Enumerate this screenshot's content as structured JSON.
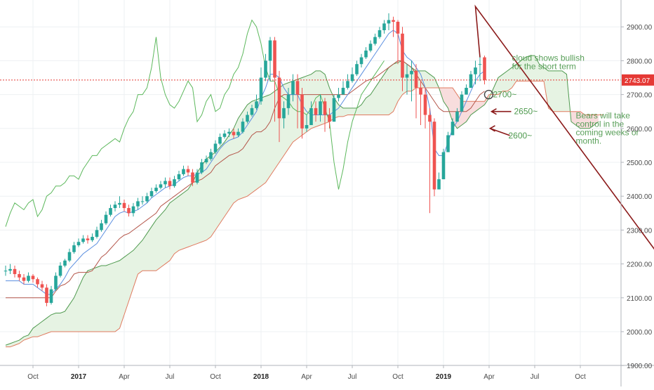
{
  "chart_data": {
    "type": "candlestick",
    "title": "",
    "xlabel": "",
    "ylabel": "",
    "ylim": [
      1890,
      3000
    ],
    "price_label": "2743.07",
    "x_ticks": [
      {
        "label": "Oct",
        "idx": 6,
        "bold": false
      },
      {
        "label": "2017",
        "idx": 16,
        "bold": true
      },
      {
        "label": "Apr",
        "idx": 26,
        "bold": false
      },
      {
        "label": "Jul",
        "idx": 36,
        "bold": false
      },
      {
        "label": "Oct",
        "idx": 46,
        "bold": false
      },
      {
        "label": "2018",
        "idx": 56,
        "bold": true
      },
      {
        "label": "Apr",
        "idx": 66,
        "bold": false
      },
      {
        "label": "Jul",
        "idx": 76,
        "bold": false
      },
      {
        "label": "Oct",
        "idx": 86,
        "bold": false
      },
      {
        "label": "2019",
        "idx": 96,
        "bold": true
      },
      {
        "label": "Apr",
        "idx": 106,
        "bold": false
      },
      {
        "label": "Jul",
        "idx": 116,
        "bold": false
      },
      {
        "label": "Oct",
        "idx": 126,
        "bold": false
      }
    ],
    "y_ticks": [
      1900,
      2000,
      2100,
      2200,
      2300,
      2400,
      2500,
      2600,
      2700,
      2800,
      2900
    ],
    "y_tick_labels": [
      "1900.00",
      "2000.00",
      "2100.00",
      "2200.00",
      "2300.00",
      "2400.00",
      "2500.00",
      "2600.00",
      "2700.00",
      "2800.00",
      "2900.00"
    ],
    "closes": [
      2180,
      2185,
      2170,
      2160,
      2150,
      2165,
      2155,
      2140,
      2130,
      2085,
      2125,
      2165,
      2195,
      2210,
      2235,
      2255,
      2265,
      2275,
      2270,
      2280,
      2300,
      2320,
      2345,
      2365,
      2375,
      2380,
      2365,
      2350,
      2370,
      2385,
      2385,
      2400,
      2415,
      2425,
      2435,
      2445,
      2430,
      2450,
      2465,
      2480,
      2470,
      2440,
      2470,
      2500,
      2510,
      2530,
      2555,
      2575,
      2585,
      2590,
      2580,
      2590,
      2620,
      2640,
      2660,
      2680,
      2750,
      2800,
      2860,
      2750,
      2630,
      2660,
      2700,
      2740,
      2700,
      2600,
      2610,
      2660,
      2640,
      2680,
      2640,
      2620,
      2690,
      2700,
      2720,
      2740,
      2760,
      2790,
      2810,
      2830,
      2850,
      2870,
      2890,
      2910,
      2920,
      2915,
      2880,
      2750,
      2760,
      2770,
      2720,
      2700,
      2640,
      2620,
      2420,
      2450,
      2530,
      2580,
      2620,
      2650,
      2700,
      2720,
      2760,
      2780,
      2790,
      2743
    ],
    "opens": [
      2180,
      2180,
      2185,
      2170,
      2160,
      2150,
      2165,
      2155,
      2140,
      2130,
      2085,
      2125,
      2165,
      2195,
      2210,
      2235,
      2255,
      2265,
      2275,
      2270,
      2280,
      2300,
      2320,
      2345,
      2365,
      2375,
      2380,
      2365,
      2350,
      2370,
      2385,
      2385,
      2400,
      2415,
      2425,
      2435,
      2445,
      2430,
      2450,
      2465,
      2480,
      2470,
      2440,
      2470,
      2500,
      2510,
      2530,
      2555,
      2575,
      2585,
      2590,
      2580,
      2590,
      2620,
      2640,
      2660,
      2680,
      2750,
      2800,
      2860,
      2750,
      2630,
      2660,
      2700,
      2740,
      2700,
      2600,
      2610,
      2660,
      2640,
      2680,
      2640,
      2620,
      2690,
      2700,
      2720,
      2740,
      2760,
      2790,
      2810,
      2830,
      2850,
      2870,
      2890,
      2910,
      2920,
      2915,
      2880,
      2750,
      2760,
      2770,
      2720,
      2700,
      2640,
      2620,
      2420,
      2450,
      2530,
      2580,
      2620,
      2650,
      2700,
      2720,
      2760,
      2790,
      2810
    ],
    "highs": [
      2195,
      2200,
      2195,
      2180,
      2170,
      2175,
      2170,
      2160,
      2150,
      2140,
      2135,
      2175,
      2205,
      2215,
      2245,
      2265,
      2275,
      2285,
      2285,
      2290,
      2310,
      2330,
      2355,
      2375,
      2385,
      2400,
      2390,
      2375,
      2380,
      2395,
      2400,
      2410,
      2425,
      2435,
      2445,
      2455,
      2455,
      2460,
      2475,
      2490,
      2490,
      2480,
      2480,
      2510,
      2520,
      2540,
      2565,
      2585,
      2595,
      2600,
      2600,
      2600,
      2630,
      2650,
      2670,
      2700,
      2780,
      2820,
      2870,
      2870,
      2770,
      2680,
      2720,
      2760,
      2760,
      2720,
      2640,
      2680,
      2680,
      2700,
      2690,
      2660,
      2700,
      2720,
      2740,
      2760,
      2780,
      2800,
      2820,
      2840,
      2860,
      2880,
      2900,
      2920,
      2940,
      2930,
      2920,
      2900,
      2790,
      2800,
      2790,
      2740,
      2720,
      2660,
      2630,
      2470,
      2540,
      2590,
      2630,
      2660,
      2710,
      2730,
      2770,
      2800,
      2815,
      2815
    ],
    "lows": [
      2165,
      2170,
      2160,
      2150,
      2140,
      2145,
      2145,
      2130,
      2120,
      2075,
      2080,
      2120,
      2160,
      2190,
      2205,
      2230,
      2250,
      2260,
      2260,
      2265,
      2275,
      2295,
      2315,
      2340,
      2355,
      2365,
      2355,
      2340,
      2340,
      2360,
      2375,
      2380,
      2395,
      2410,
      2420,
      2425,
      2420,
      2425,
      2445,
      2460,
      2460,
      2430,
      2435,
      2465,
      2495,
      2505,
      2525,
      2550,
      2570,
      2575,
      2570,
      2575,
      2585,
      2615,
      2635,
      2655,
      2670,
      2740,
      2740,
      2620,
      2560,
      2600,
      2640,
      2680,
      2600,
      2570,
      2590,
      2620,
      2620,
      2620,
      2590,
      2600,
      2620,
      2680,
      2700,
      2715,
      2735,
      2755,
      2780,
      2805,
      2825,
      2845,
      2865,
      2880,
      2890,
      2870,
      2790,
      2710,
      2700,
      2680,
      2630,
      2610,
      2600,
      2350,
      2400,
      2420,
      2520,
      2570,
      2610,
      2640,
      2680,
      2700,
      2740,
      2730,
      2740,
      2730
    ],
    "ichimoku": {
      "tenkan": [
        2150,
        2150,
        2150,
        2150,
        2140,
        2140,
        2140,
        2130,
        2120,
        2110,
        2110,
        2125,
        2140,
        2160,
        2185,
        2200,
        2215,
        2230,
        2240,
        2250,
        2260,
        2280,
        2300,
        2320,
        2340,
        2350,
        2355,
        2350,
        2355,
        2360,
        2370,
        2380,
        2395,
        2405,
        2415,
        2425,
        2430,
        2435,
        2445,
        2455,
        2460,
        2460,
        2465,
        2470,
        2480,
        2500,
        2520,
        2540,
        2555,
        2565,
        2570,
        2575,
        2590,
        2610,
        2630,
        2650,
        2690,
        2720,
        2760,
        2760,
        2750,
        2720,
        2700,
        2700,
        2700,
        2670,
        2650,
        2640,
        2640,
        2640,
        2640,
        2640,
        2650,
        2660,
        2680,
        2700,
        2720,
        2740,
        2760,
        2780,
        2800,
        2820,
        2840,
        2860,
        2880,
        2890,
        2880,
        2830,
        2810,
        2800,
        2780,
        2760,
        2720,
        2660,
        2540,
        2520,
        2520,
        2560,
        2600,
        2620,
        2650,
        2680,
        2710,
        2740,
        2760,
        2770
      ],
      "kijun": [
        2100,
        2100,
        2100,
        2100,
        2100,
        2100,
        2100,
        2100,
        2100,
        2100,
        2100,
        2120,
        2135,
        2140,
        2150,
        2170,
        2175,
        2175,
        2175,
        2180,
        2200,
        2220,
        2230,
        2245,
        2260,
        2275,
        2285,
        2290,
        2300,
        2310,
        2320,
        2330,
        2340,
        2350,
        2370,
        2380,
        2390,
        2400,
        2410,
        2420,
        2430,
        2440,
        2445,
        2450,
        2460,
        2470,
        2490,
        2500,
        2510,
        2520,
        2525,
        2530,
        2540,
        2560,
        2580,
        2590,
        2590,
        2600,
        2620,
        2660,
        2690,
        2700,
        2700,
        2700,
        2700,
        2700,
        2700,
        2700,
        2700,
        2700,
        2700,
        2700,
        2700,
        2700,
        2700,
        2700,
        2710,
        2720,
        2730,
        2740,
        2745,
        2750,
        2760,
        2770,
        2780,
        2790,
        2800,
        2800,
        2790,
        2780,
        2760,
        2740,
        2720,
        2700,
        2680,
        2660,
        2650,
        2650,
        2650,
        2650,
        2650,
        2650,
        2660,
        2680,
        2700,
        2710
      ],
      "chikou": [
        2310,
        2350,
        2380,
        2370,
        2360,
        2380,
        2390,
        2340,
        2360,
        2400,
        2410,
        2430,
        2430,
        2440,
        2460,
        2460,
        2450,
        2480,
        2500,
        2520,
        2520,
        2540,
        2550,
        2560,
        2570,
        2560,
        2600,
        2630,
        2650,
        2700,
        2700,
        2720,
        2780,
        2870,
        2750,
        2700,
        2670,
        2660,
        2680,
        2710,
        2740,
        2720,
        2620,
        2640,
        2680,
        2700,
        2650,
        2660,
        2700,
        2720,
        2760,
        2780,
        2820,
        2880,
        2920,
        2900,
        2850,
        2780,
        2740,
        2740,
        2700,
        2690,
        2680,
        2660,
        2650,
        2650,
        2640,
        2660,
        2690,
        2700,
        2660,
        2620,
        2500,
        2420,
        2480,
        2560,
        2620,
        2660,
        2700,
        2720,
        2740,
        2760,
        2780,
        2800
      ],
      "spanA": [
        1960,
        1965,
        1970,
        1975,
        1985,
        1990,
        2010,
        2020,
        2030,
        2040,
        2050,
        2055,
        2055,
        2060,
        2080,
        2100,
        2130,
        2160,
        2180,
        2185,
        2190,
        2195,
        2195,
        2200,
        2205,
        2210,
        2220,
        2230,
        2240,
        2255,
        2270,
        2290,
        2310,
        2330,
        2345,
        2360,
        2380,
        2390,
        2400,
        2410,
        2420,
        2440,
        2470,
        2490,
        2510,
        2520,
        2530,
        2545,
        2560,
        2580,
        2600,
        2630,
        2650,
        2670,
        2680,
        2685,
        2690,
        2695,
        2700,
        2710,
        2720,
        2730,
        2735,
        2740,
        2745,
        2750,
        2755,
        2760,
        2770,
        2770,
        2760,
        2720,
        2690,
        2670,
        2660,
        2660,
        2660,
        2660,
        2670,
        2690,
        2700,
        2720,
        2740,
        2760,
        2780,
        2790,
        2795,
        2800,
        2790,
        2780,
        2770,
        2770,
        2770,
        2760,
        2750,
        2720,
        2680,
        2660,
        2620,
        2600,
        2610,
        2620,
        2640,
        2650,
        2660,
        2670,
        2690,
        2720,
        2750,
        2760,
        2770,
        2780,
        2790,
        2800,
        2810,
        2815,
        2815,
        2790,
        2780,
        2770,
        2770,
        2770,
        2770,
        2760,
        2620,
        2610,
        2600,
        2600,
        2600,
        2610,
        2620
      ],
      "spanB": [
        1955,
        1955,
        1960,
        1965,
        1975,
        1980,
        1985,
        1985,
        1990,
        1995,
        2000,
        2000,
        2000,
        2000,
        2000,
        2000,
        2000,
        2000,
        2000,
        2000,
        2000,
        2000,
        2000,
        2000,
        2000,
        2010,
        2050,
        2090,
        2130,
        2170,
        2180,
        2180,
        2180,
        2180,
        2190,
        2200,
        2210,
        2230,
        2240,
        2245,
        2250,
        2255,
        2260,
        2265,
        2270,
        2280,
        2300,
        2320,
        2340,
        2360,
        2380,
        2390,
        2395,
        2400,
        2410,
        2420,
        2430,
        2440,
        2460,
        2480,
        2500,
        2520,
        2540,
        2560,
        2570,
        2580,
        2590,
        2600,
        2605,
        2610,
        2615,
        2620,
        2630,
        2635,
        2635,
        2640,
        2640,
        2640,
        2640,
        2640,
        2640,
        2640,
        2640,
        2640,
        2640,
        2650,
        2680,
        2700,
        2710,
        2710,
        2720,
        2720,
        2720,
        2720,
        2720,
        2720,
        2720,
        2720,
        2720,
        2700,
        2680,
        2680,
        2680,
        2680,
        2680,
        2680,
        2700,
        2700,
        2700,
        2710,
        2710,
        2720,
        2740,
        2740,
        2740,
        2740,
        2740,
        2740,
        2740,
        2660,
        2650,
        2650,
        2650,
        2650,
        2650,
        2650,
        2650,
        2640,
        2640,
        2640,
        2640,
        2640
      ]
    },
    "projection": {
      "points": [
        [
          103,
          2960
        ],
        [
          149,
          2120
        ]
      ],
      "start_idx": 104,
      "start_value": 2810
    },
    "annotations": [
      {
        "text": "cloud shows bullish",
        "idx": 111,
        "value": 2800
      },
      {
        "text": "for the short term",
        "idx": 111,
        "value": 2775
      },
      {
        "text": "Bears will take",
        "idx": 125,
        "value": 2630
      },
      {
        "text": "control in the",
        "idx": 125,
        "value": 2605
      },
      {
        "text": "coming weeks or",
        "idx": 125,
        "value": 2580
      },
      {
        "text": "month.",
        "idx": 125,
        "value": 2555
      }
    ],
    "levels": [
      {
        "text": "2700~",
        "value": 2700
      },
      {
        "text": "2650~",
        "value": 2650
      },
      {
        "text": "2600~",
        "value": 2600
      }
    ],
    "colors": {
      "up": "#26a69a",
      "down": "#ef5350",
      "tenkan": "#5b8fe0",
      "kijun": "#b4564a",
      "chikou": "#5cb85c",
      "spanA": "#4f9a4f",
      "spanB": "#e07a5f",
      "cloud": "#e6f3e3",
      "cloudRed": "#f8dddd",
      "arrow": "#8b1a1a",
      "priceLine": "#e53935"
    }
  }
}
